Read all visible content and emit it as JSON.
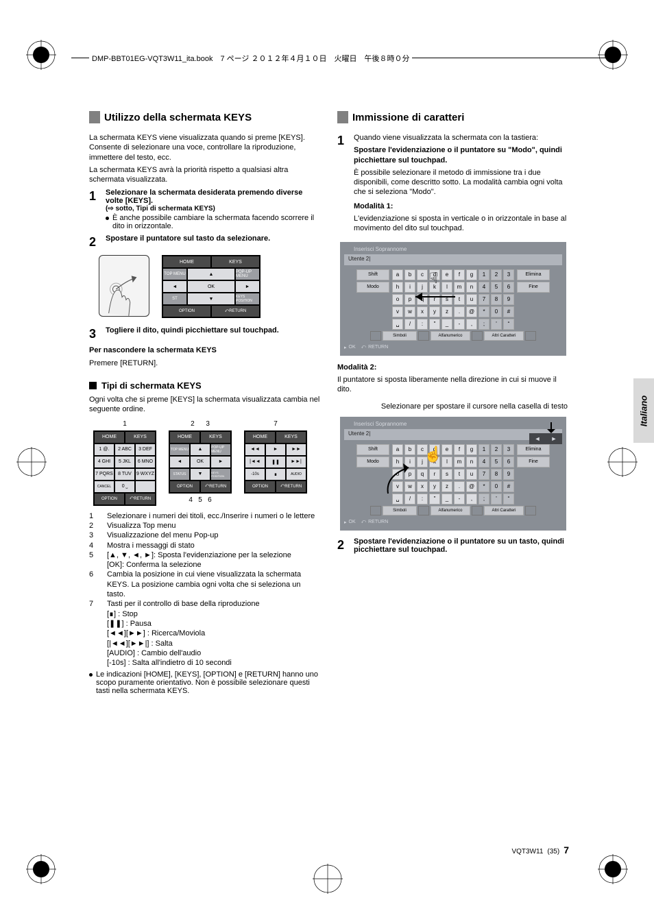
{
  "header": {
    "filename": "DMP-BBT01EG-VQT3W11_ita.book",
    "page_jp": "7 ページ ２０１２年４月１０日　火曜日　午後８時０分"
  },
  "side_tab": "Italiano",
  "footer": {
    "code": "VQT3W11",
    "paren": "(35)",
    "page": "7"
  },
  "left": {
    "heading": "Utilizzo della schermata KEYS",
    "intro1": "La schermata KEYS viene visualizzata quando si preme [KEYS]. Consente di selezionare una voce, controllare la riproduzione, immettere del testo, ecc.",
    "intro2": "La schermata KEYS avrà la priorità rispetto a qualsiasi altra schermata visualizzata.",
    "step1_main": "Selezionare la schermata desiderata premendo diverse volte [KEYS].",
    "step1_sub": "(⇨ sotto, Tipi di schermata KEYS)",
    "step1_bullet": "È anche possibile cambiare la schermata facendo scorrere il dito in orizzontale.",
    "step2": "Spostare il puntatore sul tasto da selezionare.",
    "step3": "Togliere il dito, quindi picchiettare sul touchpad.",
    "hide_title": "Per nascondere la schermata KEYS",
    "hide_text": "Premere [RETURN].",
    "sub_heading": "Tipi di schermata KEYS",
    "sub_intro": "Ogni volta che si preme [KEYS] la schermata visualizzata cambia nel seguente ordine.",
    "li1": "Selezionare i numeri dei titoli, ecc./Inserire i numeri o le lettere",
    "li2": "Visualizza Top menu",
    "li3": "Visualizzazione del menu Pop-up",
    "li4": "Mostra i messaggi di stato",
    "li5": "[▲, ▼, ◄, ►]: Sposta l'evidenziazione per la selezione",
    "li5b": "[OK]: Conferma la selezione",
    "li6": "Cambia la posizione in cui viene visualizzata la schermata KEYS. La posizione cambia ogni volta che si seleziona un tasto.",
    "li7": "Tasti per il controllo di base della riproduzione",
    "li7a": "[∎] : Stop",
    "li7b": "[❚❚] : Pausa",
    "li7c": "[◄◄][►►] : Ricerca/Moviola",
    "li7d": "[|◄◄][►►|] : Salta",
    "li7e": "[AUDIO] : Cambio dell'audio",
    "li7f": "[-10s] : Salta all'indietro di 10 secondi",
    "bullet_end": "Le indicazioni [HOME], [KEYS], [OPTION] e [RETURN] hanno uno scopo puramente orientativo. Non è possibile selezionare questi tasti nella schermata KEYS.",
    "menu": {
      "home": "HOME",
      "keys": "KEYS",
      "topmenu": "TOP MENU",
      "popup": "POP-UP MENU",
      "ok": "OK",
      "status": "ST",
      "keyspos": "KEYS POSITION",
      "option": "OPTION",
      "return": "RETURN"
    },
    "types": {
      "col1_top": "1",
      "col2_top_a": "2",
      "col2_top_b": "3",
      "col3_top": "7",
      "col2_bot_a": "4",
      "col2_bot_b": "5",
      "col2_bot_c": "6",
      "numpad": {
        "r1": [
          "1 @.",
          "2 ABC",
          "3 DEF"
        ],
        "r2": [
          "4 GHI",
          "5 JKL",
          "6 MNO"
        ],
        "r3": [
          "7 PQRS",
          "8 TUV",
          "9 WXYZ"
        ],
        "r4": [
          "CANCEL",
          "0 ˽",
          ""
        ]
      },
      "nav": {
        "home": "HOME",
        "keys": "KEYS",
        "top": "TOP MENU",
        "popup": "POP-UP MENU",
        "ok": "OK",
        "status": "STATUS",
        "pos": "KEYS POSITION",
        "option": "OPTION",
        "return": "RETURN"
      },
      "play": {
        "home": "HOME",
        "keys": "KEYS",
        "rew": "◄◄",
        "play": "►",
        "ff": "►►",
        "prev": "|◄◄",
        "pause": "❚❚",
        "next": "►►|",
        "m10": "-10s",
        "stop": "∎",
        "audio": "AUDIO",
        "option": "OPTION",
        "return": "RETURN"
      }
    }
  },
  "right": {
    "heading": "Immissione di caratteri",
    "step1_intro": "Quando viene visualizzata la schermata con la tastiera:",
    "step1_bold": "Spostare l'evidenziazione o il puntatore su \"Modo\", quindi picchiettare sul touchpad.",
    "step1_text": "È possibile selezionare il metodo di immissione tra i due disponibili, come descritto sotto. La modalità cambia ogni volta che si seleziona \"Modo\".",
    "mode1_title": "Modalità 1:",
    "mode1_text": "L'evidenziazione si sposta in verticale o in orizzontale in base al movimento del dito sul touchpad.",
    "mode2_title": "Modalità 2:",
    "mode2_text": "Il puntatore si sposta liberamente nella direzione in cui si muove il dito.",
    "select_text": "Selezionare per spostare il cursore nella casella di testo",
    "step2": "Spostare l'evidenziazione o il puntatore su un tasto, quindi picchiettare sul touchpad.",
    "kb": {
      "title": "Inserisci Soprannome",
      "field": "Utente 2|",
      "shift": "Shift",
      "modo": "Modo",
      "elimina": "Elimina",
      "fine": "Fine",
      "rows": [
        [
          "a",
          "b",
          "c",
          "d",
          "e",
          "f",
          "g",
          "1",
          "2",
          "3"
        ],
        [
          "h",
          "i",
          "j",
          "k",
          "l",
          "m",
          "n",
          "4",
          "5",
          "6"
        ],
        [
          "o",
          "p",
          "q",
          "r",
          "s",
          "t",
          "u",
          "7",
          "8",
          "9"
        ],
        [
          "v",
          "w",
          "x",
          "y",
          "z",
          ".",
          "@",
          "*",
          "0",
          "#"
        ],
        [
          "␣",
          "/",
          ":",
          "\"",
          "_",
          "-",
          ",",
          ";",
          "'",
          "“"
        ]
      ],
      "bottom": [
        "",
        "Simboli",
        "",
        "Alfanumerico",
        "",
        "Altri Caratteri",
        ""
      ],
      "foot_ok": "OK",
      "foot_ret": "RETURN"
    }
  }
}
